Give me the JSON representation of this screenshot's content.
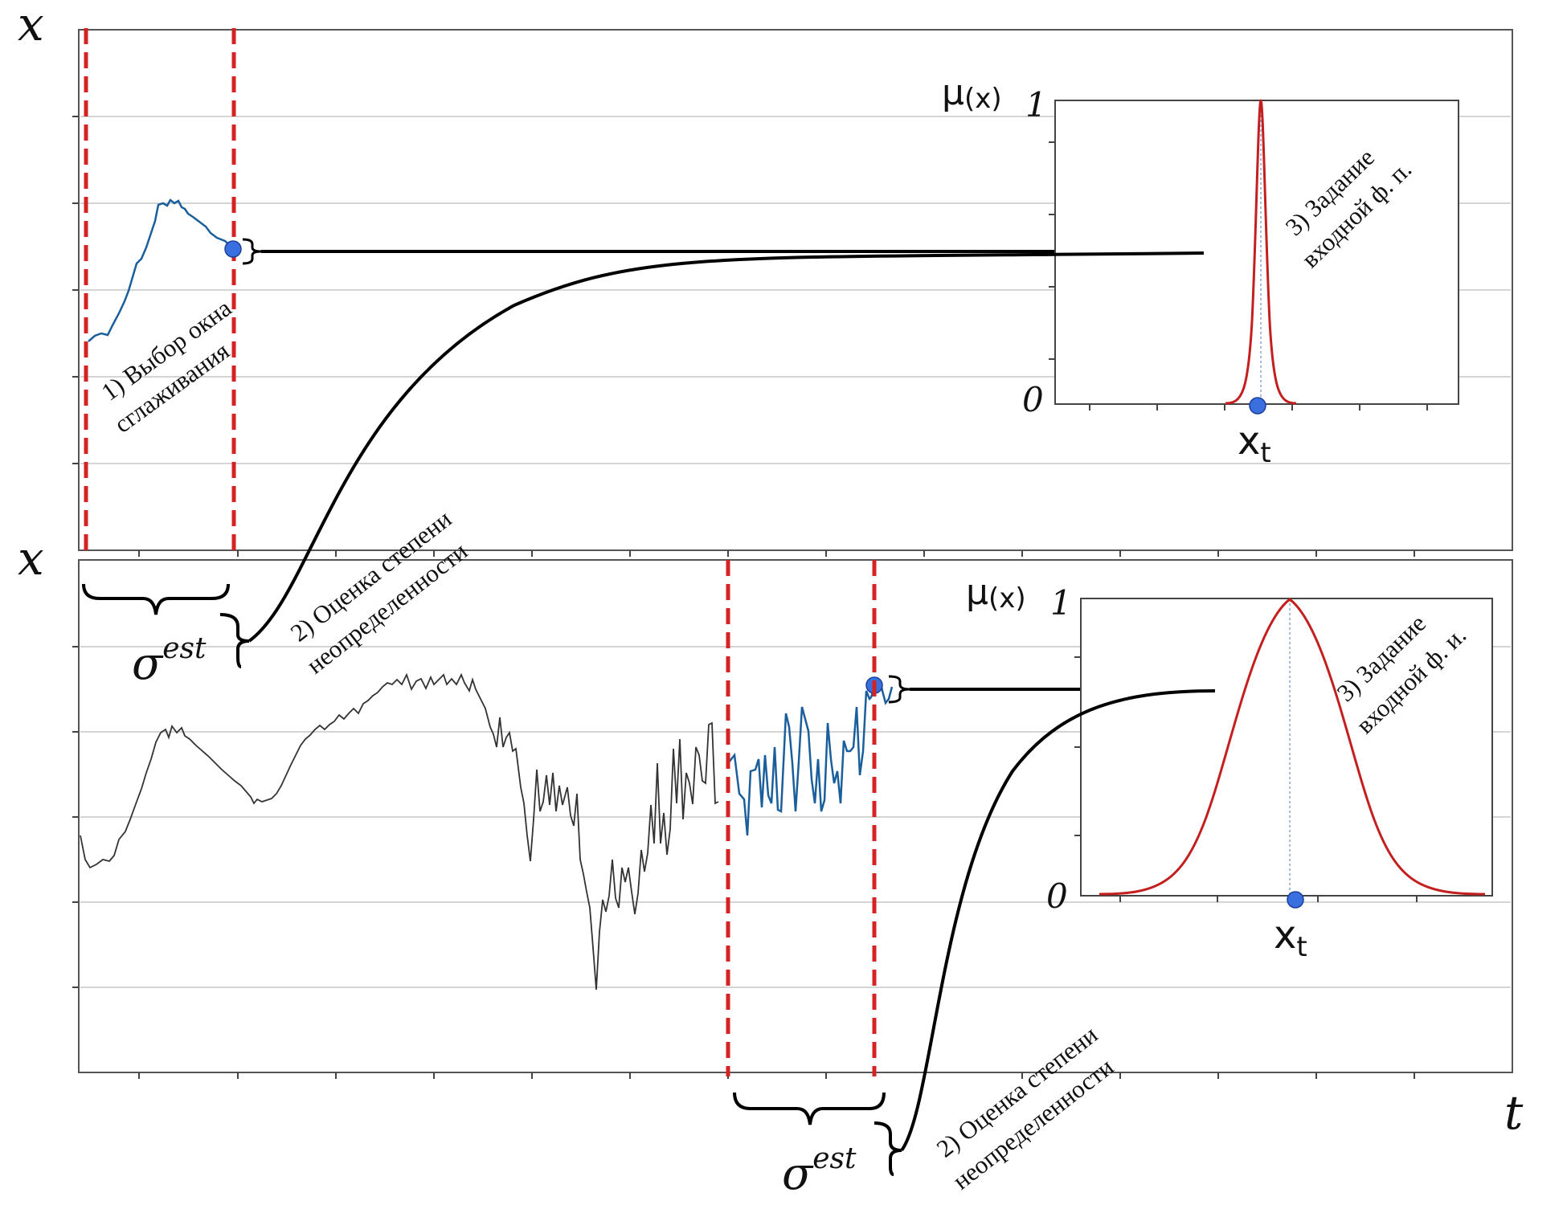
{
  "top_panel": {
    "y_axis_symbol": "x",
    "step1_line1": "1) Выбор окна",
    "step1_line2": "сглаживания"
  },
  "bottom_panel": {
    "y_axis_symbol": "x",
    "t_axis_symbol": "t"
  },
  "sigma_top": {
    "base": "σ",
    "sup": "est"
  },
  "sigma_bottom": {
    "base": "σ",
    "sup": "est"
  },
  "step2_top": {
    "line1": "2) Оценка степени",
    "line2": "неопределенности"
  },
  "step2_bottom": {
    "line1": "2) Оценка степени",
    "line2": "неопределенности"
  },
  "inset_top": {
    "mu_label": "μ",
    "mu_sub": "(x)",
    "y_top": "1",
    "y_bottom": "0",
    "xt_base": "x",
    "xt_sub": "t",
    "step3_line1": "3) Задание",
    "step3_line2": "входной ф. п."
  },
  "inset_bottom": {
    "mu_label": "μ",
    "mu_sub": "(x)",
    "y_top": "1",
    "y_bottom": "0",
    "xt_base": "x",
    "xt_sub": "t",
    "step3_line1": "3) Задание",
    "step3_line2": "входной ф. и."
  },
  "colors": {
    "window_line": "#d42323",
    "series_highlight": "#1a5f9c",
    "series_base": "#333333",
    "marker": "#3a6fe0",
    "membership_curve": "#c41f1f",
    "grid": "#cfcfcf"
  }
}
